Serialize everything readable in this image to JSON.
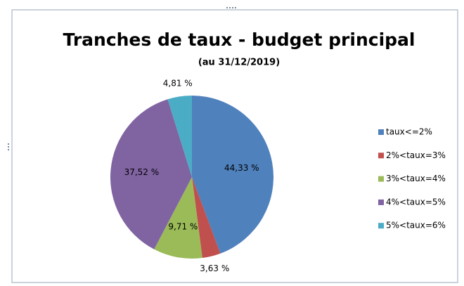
{
  "chart_data": {
    "type": "pie",
    "title": "Tranches de taux - budget principal",
    "subtitle": "(au 31/12/2019)",
    "categories": [
      "taux<=2%",
      "2%<taux=3%",
      "3%<taux=4%",
      "4%<taux=5%",
      "5%<taux=6%"
    ],
    "values": [
      44.33,
      3.63,
      9.71,
      37.52,
      4.81
    ],
    "value_labels": [
      "44,33 %",
      "3,63 %",
      "9,71 %",
      "37,52 %",
      "4,81 %"
    ],
    "colors": [
      "#4f81bd",
      "#c0504d",
      "#9bbb59",
      "#8064a2",
      "#4bacc6"
    ],
    "legend": "right"
  }
}
